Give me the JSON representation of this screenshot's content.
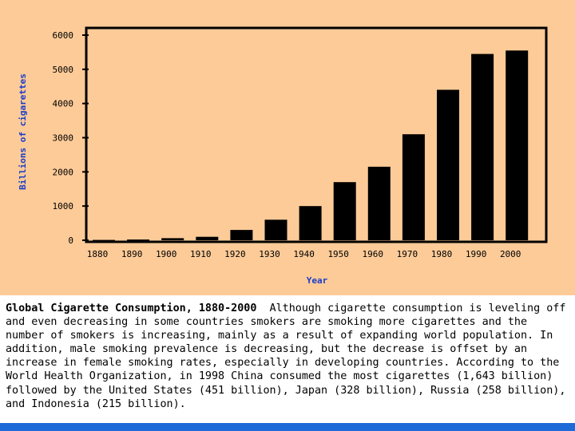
{
  "chart_data": {
    "type": "bar",
    "title": "",
    "xlabel": "Year",
    "ylabel": "Billions of cigarettes",
    "categories": [
      "1880",
      "1890",
      "1900",
      "1910",
      "1920",
      "1930",
      "1940",
      "1950",
      "1960",
      "1970",
      "1980",
      "1990",
      "2000"
    ],
    "values": [
      10,
      20,
      60,
      100,
      300,
      600,
      1000,
      1700,
      2150,
      3100,
      4400,
      5450,
      5550
    ],
    "ylim": [
      0,
      6000
    ],
    "yticks": [
      "0",
      "1000",
      "2000",
      "3000",
      "4000",
      "5000",
      "6000"
    ],
    "grid": false,
    "bar_color": "#000000",
    "background_color": "#fdcb98",
    "axis_title_color": "#1a3cc8"
  },
  "caption": {
    "title": "Global Cigarette Consumption, 1880-2000",
    "text": "Although cigarette consumption is leveling off and even decreasing in some countries smokers are smoking more cigarettes and the number of smokers is increasing, mainly as a result of expanding world population. In addition, male smoking prevalence is decreasing, but the decrease is offset by an increase in female smoking rates, especially in developing countries. According to the World Health Organization, in 1998 China consumed the most cigarettes (1,643 billion) followed by the United States (451 billion), Japan (328 billion), Russia (258 billion), and Indonesia (215 billion)."
  },
  "accent_bar_color": "#1e6ad9"
}
